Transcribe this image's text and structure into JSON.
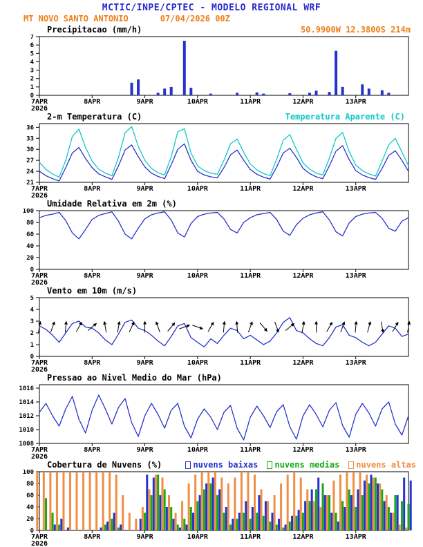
{
  "header": {
    "title": "MCTIC/INPE/CPTEC - MODELO REGIONAL WRF",
    "station": "MT NOVO SANTO ANTONIO",
    "run": "07/04/2026 00Z",
    "colors": {
      "title": "#2828cc",
      "accent": "#ef7f1a"
    }
  },
  "x_axis": {
    "hours_span": 168,
    "days": [
      {
        "hour": 0,
        "label": "7APR",
        "year": "2026"
      },
      {
        "hour": 24,
        "label": "8APR"
      },
      {
        "hour": 48,
        "label": "9APR"
      },
      {
        "hour": 72,
        "label": "10APR"
      },
      {
        "hour": 96,
        "label": "11APR"
      },
      {
        "hour": 120,
        "label": "12APR"
      },
      {
        "hour": 144,
        "label": "13APR"
      }
    ]
  },
  "hours": [
    0,
    3,
    6,
    9,
    12,
    15,
    18,
    21,
    24,
    27,
    30,
    33,
    36,
    39,
    42,
    45,
    48,
    51,
    54,
    57,
    60,
    63,
    66,
    69,
    72,
    75,
    78,
    81,
    84,
    87,
    90,
    93,
    96,
    99,
    102,
    105,
    108,
    111,
    114,
    117,
    120,
    123,
    126,
    129,
    132,
    135,
    138,
    141,
    144,
    147,
    150,
    153,
    156,
    159,
    162,
    165,
    168
  ],
  "chart_data": [
    {
      "type": "bar",
      "title": "Precipitacao (mm/h)",
      "right_label": "50.9900W 12.3800S 214m",
      "color": "#2433cc",
      "ylim": [
        0,
        7
      ],
      "yticks": [
        0,
        1,
        2,
        3,
        4,
        5,
        6,
        7
      ],
      "values": [
        0,
        0,
        0,
        0,
        0,
        0,
        0,
        0,
        0,
        0,
        0,
        0,
        0,
        0,
        1.5,
        1.9,
        0,
        0,
        0.3,
        0.8,
        1.0,
        0,
        6.5,
        0.9,
        0,
        0,
        0.2,
        0,
        0,
        0,
        0.3,
        0,
        0,
        0.35,
        0.2,
        0,
        0,
        0,
        0.25,
        0,
        0,
        0.3,
        0.55,
        0,
        0.4,
        5.3,
        1.0,
        0,
        0,
        1.3,
        0.8,
        0,
        0.6,
        0.3,
        0,
        0,
        0
      ]
    },
    {
      "type": "line",
      "title": "2-m Temperatura (C)",
      "right_label": "Temperatura Aparente (C)",
      "ylim": [
        21,
        37
      ],
      "yticks": [
        21,
        24,
        27,
        30,
        33,
        36
      ],
      "series": [
        {
          "name": "2-m Temperatura (C)",
          "color": "#2433cc",
          "values": [
            24.0,
            22.8,
            22.0,
            21.4,
            25.0,
            29.0,
            30.5,
            27.5,
            25.0,
            23.3,
            22.5,
            21.8,
            25.5,
            29.8,
            31.2,
            28.0,
            25.2,
            23.5,
            22.6,
            22.0,
            25.8,
            30.0,
            31.5,
            27.0,
            24.0,
            23.0,
            22.5,
            22.2,
            25.0,
            28.5,
            29.8,
            27.0,
            24.5,
            23.2,
            22.4,
            21.9,
            25.2,
            29.0,
            30.3,
            27.8,
            24.8,
            23.4,
            22.5,
            22.0,
            25.5,
            29.5,
            31.0,
            27.2,
            24.2,
            23.0,
            22.3,
            21.8,
            24.8,
            28.3,
            29.6,
            27.0,
            24.0
          ]
        },
        {
          "name": "Temperatura Aparente (C)",
          "color": "#10c8c4",
          "values": [
            26.5,
            24.5,
            23.3,
            22.4,
            27.0,
            33.5,
            35.5,
            30.5,
            26.8,
            24.6,
            23.5,
            22.8,
            27.8,
            34.5,
            36.2,
            30.8,
            27.0,
            24.8,
            23.6,
            23.0,
            28.0,
            34.8,
            35.6,
            29.0,
            25.5,
            24.2,
            23.5,
            23.2,
            27.0,
            31.5,
            32.8,
            29.2,
            26.0,
            24.4,
            23.4,
            22.8,
            27.3,
            32.5,
            34.0,
            30.0,
            26.3,
            24.6,
            23.5,
            23.0,
            27.6,
            33.0,
            34.6,
            29.4,
            25.7,
            24.2,
            23.3,
            22.7,
            26.8,
            31.2,
            33.0,
            29.3,
            25.5
          ]
        }
      ]
    },
    {
      "type": "line",
      "title": "Umidade Relativa em 2m (%)",
      "ylim": [
        0,
        100
      ],
      "yticks": [
        0,
        20,
        40,
        60,
        80,
        100
      ],
      "series": [
        {
          "name": "Umidade Relativa em 2m (%)",
          "color": "#2433cc",
          "values": [
            88,
            92,
            94,
            97,
            83,
            62,
            52,
            68,
            85,
            92,
            95,
            98,
            82,
            60,
            52,
            70,
            86,
            93,
            96,
            98,
            84,
            62,
            55,
            78,
            90,
            94,
            96,
            97,
            86,
            68,
            62,
            80,
            88,
            93,
            95,
            97,
            85,
            65,
            58,
            76,
            87,
            93,
            96,
            98,
            84,
            64,
            57,
            79,
            90,
            94,
            96,
            97,
            87,
            70,
            65,
            82,
            88
          ]
        }
      ]
    },
    {
      "type": "line-arrows",
      "title": "Vento em 10m (m/s)",
      "ylim": [
        0,
        5
      ],
      "yticks": [
        0,
        1,
        2,
        3,
        4,
        5
      ],
      "arrow_y": 2.5,
      "arrow_dirs_deg": [
        100,
        110,
        95,
        120,
        140,
        80,
        100,
        115,
        90,
        70,
        130,
        160,
        200,
        120,
        95,
        85,
        110,
        230,
        250,
        140,
        100,
        90,
        120,
        110,
        95,
        105,
        260,
        120,
        100
      ],
      "series": [
        {
          "name": "Vento em 10m (m/s)",
          "color": "#2433cc",
          "values": [
            2.6,
            2.3,
            1.8,
            1.2,
            2.0,
            2.8,
            3.0,
            2.5,
            2.4,
            2.0,
            1.4,
            1.0,
            1.9,
            2.9,
            3.1,
            2.4,
            2.2,
            1.8,
            1.3,
            0.9,
            1.7,
            2.6,
            2.8,
            1.6,
            1.2,
            0.8,
            1.5,
            1.1,
            1.8,
            2.4,
            2.2,
            1.5,
            1.8,
            1.4,
            1.0,
            1.3,
            2.0,
            2.9,
            3.3,
            2.2,
            2.0,
            1.5,
            1.1,
            0.9,
            1.6,
            2.5,
            2.7,
            1.8,
            1.6,
            1.2,
            0.9,
            1.2,
            1.9,
            2.6,
            2.4,
            1.7,
            1.9
          ]
        }
      ]
    },
    {
      "type": "line",
      "title": "Pressao ao Nivel Medio do Mar (hPa)",
      "ylim": [
        1008,
        1016.5
      ],
      "yticks": [
        1008,
        1010,
        1012,
        1014,
        1016
      ],
      "series": [
        {
          "name": "Pressao ao Nivel Medio do Mar (hPa)",
          "color": "#2433cc",
          "values": [
            1012.5,
            1013.8,
            1012.0,
            1010.5,
            1013.0,
            1014.8,
            1011.5,
            1009.5,
            1012.8,
            1015.0,
            1013.0,
            1010.8,
            1013.2,
            1014.5,
            1011.0,
            1009.0,
            1012.0,
            1013.8,
            1012.2,
            1010.2,
            1012.8,
            1013.8,
            1010.5,
            1008.8,
            1011.5,
            1013.0,
            1011.8,
            1010.0,
            1012.5,
            1013.5,
            1010.2,
            1008.5,
            1011.8,
            1013.4,
            1012.0,
            1010.3,
            1012.6,
            1013.6,
            1010.4,
            1008.6,
            1012.0,
            1013.6,
            1012.2,
            1010.4,
            1012.8,
            1013.9,
            1010.6,
            1008.9,
            1012.2,
            1013.8,
            1012.4,
            1010.5,
            1013.0,
            1014.0,
            1010.8,
            1009.2,
            1012.0
          ]
        }
      ]
    },
    {
      "type": "bar-multi",
      "title": "Cobertura de Nuvens (%)",
      "ylim": [
        0,
        100
      ],
      "yticks": [
        0,
        20,
        40,
        60,
        80,
        100
      ],
      "draw_order": [
        2,
        1,
        0
      ],
      "series": [
        {
          "name": "nuvens baixas",
          "color": "#2433cc",
          "offset": 3.2,
          "values": [
            0,
            0,
            10,
            20,
            5,
            0,
            0,
            0,
            0,
            5,
            15,
            30,
            10,
            0,
            0,
            20,
            95,
            90,
            60,
            40,
            20,
            5,
            10,
            30,
            60,
            80,
            90,
            70,
            40,
            20,
            30,
            50,
            40,
            60,
            50,
            30,
            20,
            10,
            25,
            35,
            50,
            70,
            90,
            60,
            30,
            15,
            40,
            60,
            70,
            85,
            95,
            80,
            50,
            30,
            60,
            90,
            85
          ]
        },
        {
          "name": "nuvens medias",
          "color": "#18a818",
          "offset": 0,
          "values": [
            0,
            55,
            30,
            10,
            0,
            0,
            0,
            0,
            0,
            0,
            10,
            20,
            5,
            0,
            0,
            0,
            30,
            60,
            95,
            70,
            40,
            10,
            20,
            40,
            50,
            70,
            80,
            60,
            30,
            10,
            20,
            30,
            20,
            30,
            25,
            15,
            10,
            5,
            15,
            25,
            30,
            50,
            70,
            80,
            60,
            30,
            50,
            70,
            40,
            60,
            80,
            90,
            70,
            40,
            60,
            50,
            45
          ]
        },
        {
          "name": "nuvens altas",
          "color": "#ef8e44",
          "offset": -3.2,
          "values": [
            100,
            100,
            100,
            100,
            100,
            100,
            100,
            100,
            100,
            100,
            100,
            100,
            95,
            60,
            30,
            20,
            40,
            70,
            95,
            90,
            60,
            30,
            50,
            80,
            95,
            100,
            100,
            100,
            90,
            80,
            90,
            100,
            100,
            95,
            70,
            50,
            60,
            80,
            95,
            100,
            90,
            70,
            50,
            40,
            60,
            85,
            95,
            100,
            100,
            100,
            95,
            90,
            80,
            60,
            30,
            10,
            5
          ]
        }
      ]
    }
  ]
}
